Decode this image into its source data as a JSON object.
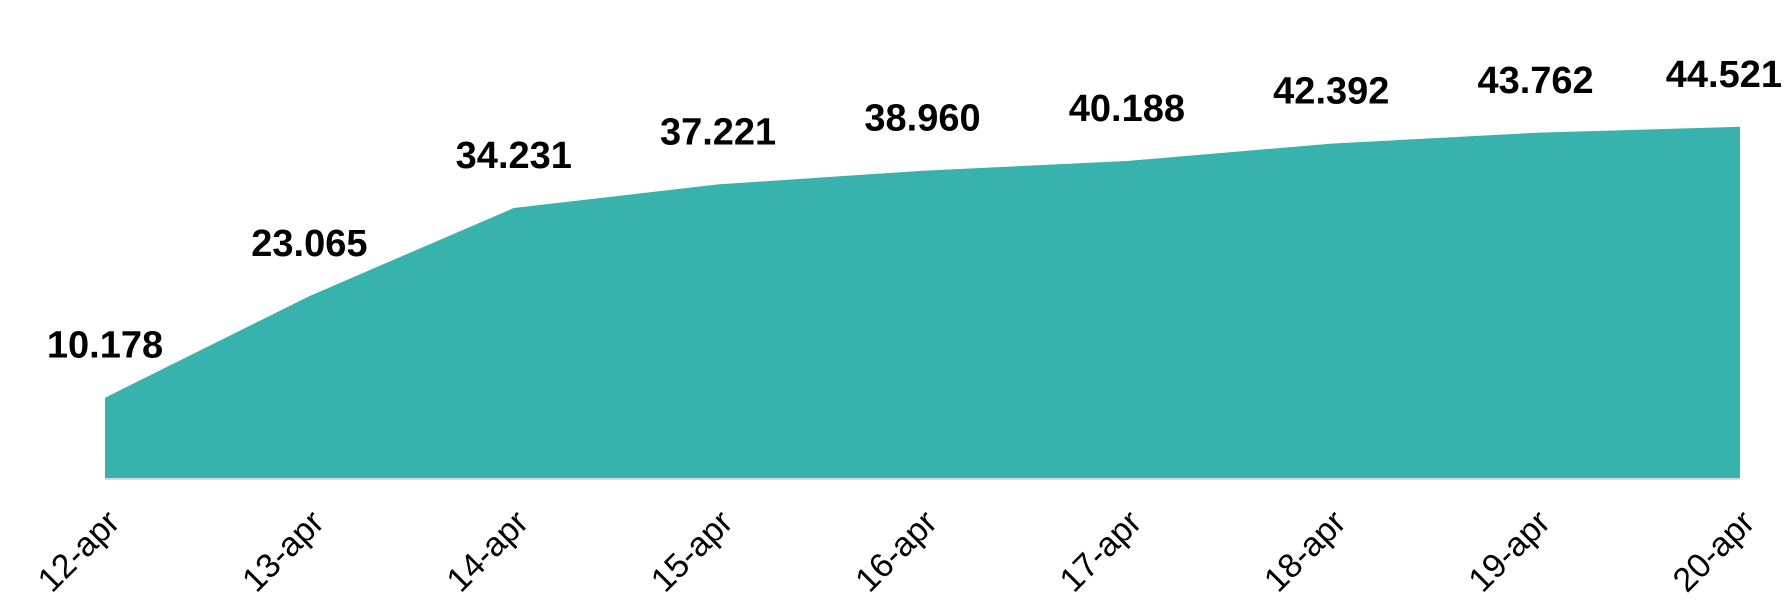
{
  "chart_data": {
    "type": "area",
    "categories": [
      "12-apr",
      "13-apr",
      "14-apr",
      "15-apr",
      "16-apr",
      "17-apr",
      "18-apr",
      "19-apr",
      "20-apr"
    ],
    "values": [
      10178,
      23065,
      34231,
      37221,
      38960,
      40188,
      42392,
      43762,
      44521
    ],
    "data_labels": [
      "10.178",
      "23.065",
      "34.231",
      "37.221",
      "38.960",
      "40.188",
      "42.392",
      "43.762",
      "44.521"
    ],
    "title": "",
    "xlabel": "",
    "ylabel": "",
    "ylim": [
      0,
      45000
    ],
    "grid": false,
    "legend": "none",
    "fill_color": "#38B2AC",
    "baseline_color": "#D9D9D9",
    "label_color": "#000000"
  }
}
